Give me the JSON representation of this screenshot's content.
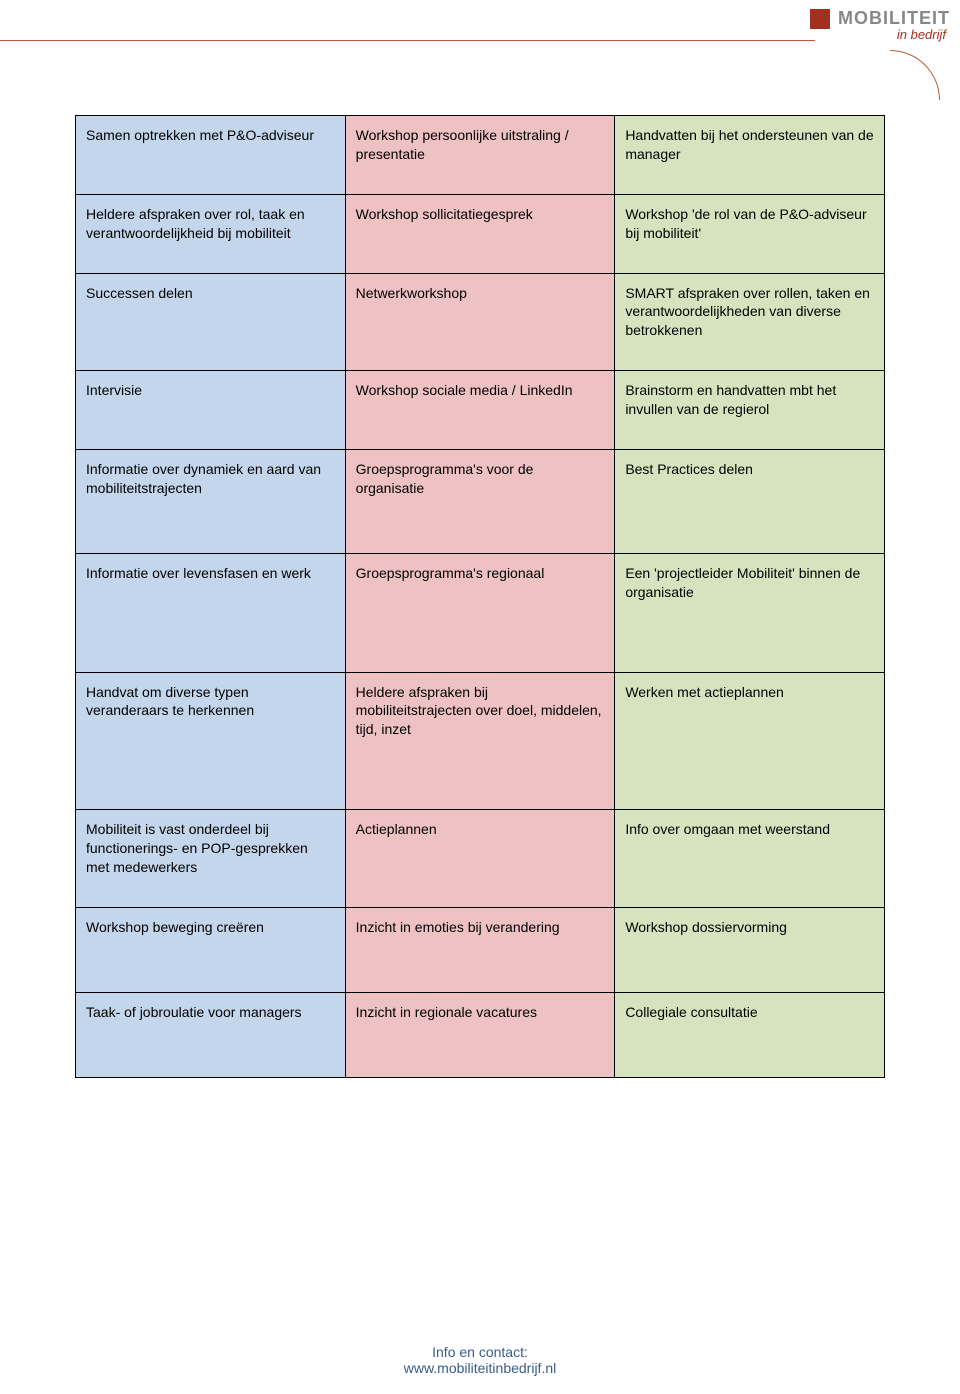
{
  "logo": {
    "main": "MOBILITEIT",
    "sub": "in bedrijf"
  },
  "colors": {
    "col0": "#c4d6eb",
    "col1": "#eec2c2",
    "col2": "#d6e3bf",
    "border": "#000000",
    "accent": "#b85c3e",
    "footer_text": "#385d8a"
  },
  "table": {
    "rows": [
      [
        "Samen optrekken met P&O-adviseur",
        "Workshop persoonlijke uitstraling / presentatie",
        "Handvatten bij het ondersteunen van de manager"
      ],
      [
        "Heldere afspraken over rol, taak en verantwoordelijkheid bij mobiliteit",
        "Workshop sollicitatiegesprek",
        "Workshop 'de rol van de P&O-adviseur bij mobiliteit'"
      ],
      [
        "Successen delen",
        "Netwerkworkshop",
        "SMART afspraken over rollen, taken en verantwoordelijkheden van diverse betrokkenen"
      ],
      [
        "Intervisie",
        "Workshop sociale media / LinkedIn",
        "Brainstorm en handvatten mbt het invullen van de regierol"
      ],
      [
        "Informatie over dynamiek en aard van mobiliteitstrajecten",
        "Groepsprogramma's voor de organisatie",
        "Best Practices delen"
      ],
      [
        "Informatie over levensfasen en werk",
        "Groepsprogramma's regionaal",
        "Een 'projectleider Mobiliteit' binnen de organisatie"
      ],
      [
        "Handvat om diverse typen veranderaars te herkennen",
        "Heldere afspraken bij mobiliteitstrajecten over doel, middelen, tijd, inzet",
        "Werken met actieplannen"
      ],
      [
        "Mobiliteit is vast onderdeel bij functionerings- en POP-gesprekken met medewerkers",
        "Actieplannen",
        "Info over omgaan met weerstand"
      ],
      [
        "Workshop beweging creëren",
        "Inzicht in emoties bij verandering",
        "Workshop dossiervorming"
      ],
      [
        "Taak- of jobroulatie voor managers",
        "Inzicht in regionale vacatures",
        "Collegiale consultatie"
      ]
    ],
    "row_heights": [
      "med",
      "med",
      "med",
      "med",
      "tall",
      "xtall",
      "xtall",
      "med",
      "tall",
      "tall"
    ]
  },
  "footer": {
    "line1": "Info en contact:",
    "line2": "www.mobiliteitinbedrijf.nl"
  }
}
